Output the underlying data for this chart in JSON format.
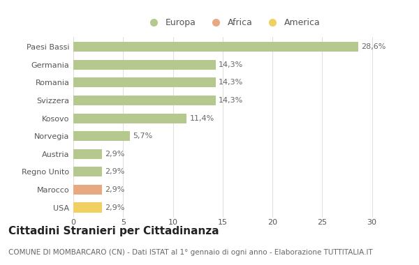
{
  "categories": [
    "Paesi Bassi",
    "Germania",
    "Romania",
    "Svizzera",
    "Kosovo",
    "Norvegia",
    "Austria",
    "Regno Unito",
    "Marocco",
    "USA"
  ],
  "values": [
    28.6,
    14.3,
    14.3,
    14.3,
    11.4,
    5.7,
    2.9,
    2.9,
    2.9,
    2.9
  ],
  "labels": [
    "28,6%",
    "14,3%",
    "14,3%",
    "14,3%",
    "11,4%",
    "5,7%",
    "2,9%",
    "2,9%",
    "2,9%",
    "2,9%"
  ],
  "colors": [
    "#b5c98e",
    "#b5c98e",
    "#b5c98e",
    "#b5c98e",
    "#b5c98e",
    "#b5c98e",
    "#b5c98e",
    "#b5c98e",
    "#e8a882",
    "#f0d060"
  ],
  "legend_labels": [
    "Europa",
    "Africa",
    "America"
  ],
  "legend_colors": [
    "#b5c98e",
    "#e8a882",
    "#f0d060"
  ],
  "title": "Cittadini Stranieri per Cittadinanza",
  "subtitle": "COMUNE DI MOMBARCARO (CN) - Dati ISTAT al 1° gennaio di ogni anno - Elaborazione TUTTITALIA.IT",
  "xlim": [
    0,
    32
  ],
  "xticks": [
    0,
    5,
    10,
    15,
    20,
    25,
    30
  ],
  "background_color": "#ffffff",
  "grid_color": "#e0e0e0",
  "bar_height": 0.55,
  "title_fontsize": 11,
  "subtitle_fontsize": 7.5,
  "label_fontsize": 8,
  "tick_fontsize": 8,
  "legend_fontsize": 9
}
